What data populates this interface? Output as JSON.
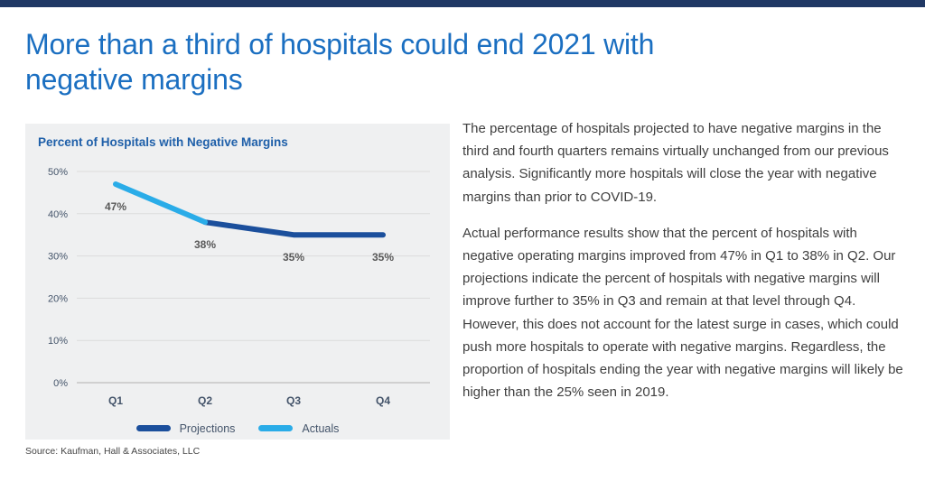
{
  "page": {
    "title": "More than a third of hospitals could end 2021 with negative margins",
    "title_color": "#1b6fc1",
    "accent_bar_color": "#203864"
  },
  "chart": {
    "panel_title": "Percent of Hospitals with Negative Margins",
    "source": "Source: Kaufman, Hall & Associates, LLC",
    "panel_background": "#eff0f1"
  },
  "chart_data": {
    "type": "line",
    "title": "Percent of Hospitals with Negative Margins",
    "categories": [
      "Q1",
      "Q2",
      "Q3",
      "Q4"
    ],
    "series": [
      {
        "name": "Projections",
        "color": "#1b4f9c",
        "values": [
          null,
          38,
          35,
          35
        ]
      },
      {
        "name": "Actuals",
        "color": "#2aace8",
        "values": [
          47,
          38,
          null,
          null
        ]
      }
    ],
    "point_labels": [
      {
        "index": 0,
        "value": 47,
        "label": "47%"
      },
      {
        "index": 1,
        "value": 38,
        "label": "38%"
      },
      {
        "index": 2,
        "value": 35,
        "label": "35%"
      },
      {
        "index": 3,
        "value": 35,
        "label": "35%"
      }
    ],
    "ylim": [
      0,
      50
    ],
    "yticks": [
      {
        "label": "0%",
        "value": 0
      },
      {
        "label": "10%",
        "value": 10
      },
      {
        "label": "20%",
        "value": 20
      },
      {
        "label": "30%",
        "value": 30
      },
      {
        "label": "40%",
        "value": 40
      },
      {
        "label": "50%",
        "value": 50
      }
    ],
    "grid": "horizontal",
    "legend_position": "bottom",
    "grid_color": "#dcdcdc",
    "zero_line_color": "#b0b0b0"
  },
  "text_column": {
    "paragraphs": [
      "The percentage of hospitals projected to have negative margins in the third and fourth quarters remains virtually unchanged from our previous analysis. Significantly more hospitals will close the year with negative margins than prior to COVID-19.",
      "Actual performance results show that the percent of hospitals with negative operating margins improved from 47% in Q1 to 38% in Q2. Our projections indicate the percent of hospitals with negative margins will improve further to 35% in Q3 and remain at that level through Q4. However, this does not account for the latest surge in cases, which could push more hospitals to operate with negative margins. Regardless, the proportion of hospitals ending the year with negative margins will likely be higher than the 25% seen in 2019."
    ]
  }
}
